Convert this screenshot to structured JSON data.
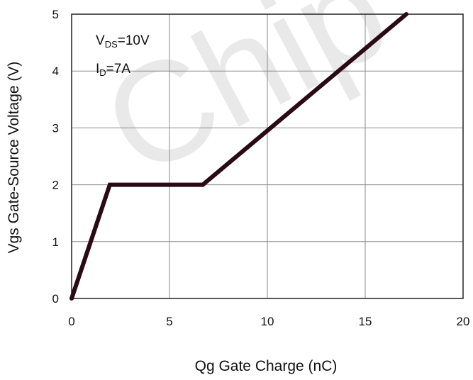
{
  "chart_data": {
    "type": "line",
    "title": "",
    "xlabel": "Qg Gate Charge (nC)",
    "ylabel": "Vgs Gate-Source Voltage (V)",
    "xlim": [
      0,
      20
    ],
    "ylim": [
      0,
      5
    ],
    "x_ticks": [
      0,
      5,
      10,
      15,
      20
    ],
    "y_ticks": [
      0,
      1,
      2,
      3,
      4,
      5
    ],
    "grid": true,
    "annotations": [
      {
        "main": "V",
        "sub": "DS",
        "rest": "=10V"
      },
      {
        "main": "I",
        "sub": "D",
        "rest": "=7A"
      }
    ],
    "series": [
      {
        "x": [
          0,
          1.95,
          6.7,
          17.1
        ],
        "y": [
          0,
          2.0,
          2.0,
          5.0
        ]
      }
    ],
    "line_color": "#2a0a14"
  },
  "watermark": "Chip"
}
